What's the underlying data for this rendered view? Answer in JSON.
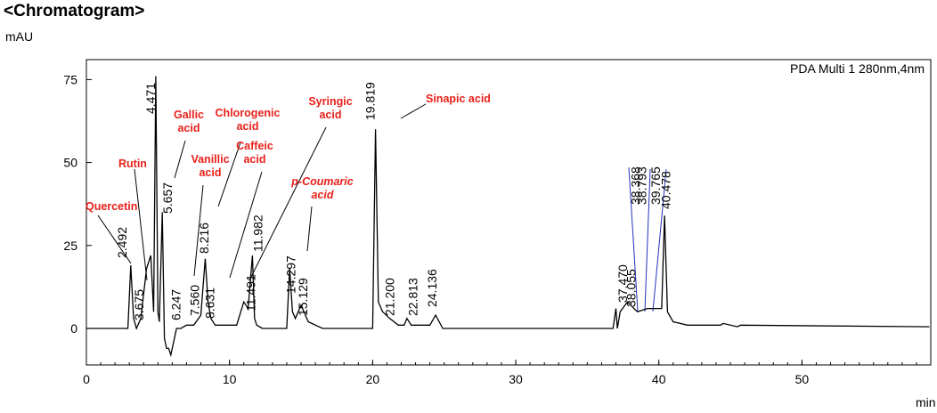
{
  "chart_data": {
    "type": "line",
    "title": "<Chromatogram>",
    "y_label": "mAU",
    "x_label": "min",
    "legend": "PDA Multi 1 280nm,4nm",
    "xlim": [
      0,
      59
    ],
    "ylim": [
      -11,
      81
    ],
    "xticks": [
      0,
      10,
      20,
      30,
      40,
      50
    ],
    "yticks": [
      0,
      25,
      50,
      75
    ],
    "x": [
      0,
      2.9,
      3.1,
      3.3,
      3.5,
      3.8,
      4.2,
      4.5,
      4.7,
      4.85,
      5.0,
      5.1,
      5.3,
      5.45,
      5.6,
      5.75,
      5.9,
      6.1,
      6.3,
      6.6,
      7.0,
      7.5,
      8.0,
      8.3,
      8.5,
      8.7,
      9.0,
      10.5,
      11.0,
      11.3,
      11.6,
      11.75,
      11.9,
      12.3,
      14.0,
      14.2,
      14.4,
      14.6,
      15.0,
      15.5,
      16.5,
      20.0,
      20.2,
      20.4,
      20.7,
      21.2,
      21.8,
      22.2,
      22.4,
      22.7,
      24.0,
      24.4,
      24.9,
      36.8,
      37.0,
      37.1,
      37.3,
      37.8,
      38.5,
      39.2,
      40.2,
      40.4,
      40.6,
      41,
      42,
      44.3,
      44.5,
      45.5,
      45.7,
      58.9
    ],
    "series": [
      {
        "color": "#000000",
        "values": [
          0,
          0,
          19,
          3,
          0,
          3,
          18,
          22,
          5,
          76,
          5,
          2,
          35,
          -3,
          -6,
          -6,
          -8,
          -4,
          0,
          0,
          1,
          1,
          4,
          21,
          8,
          3,
          1,
          1,
          8,
          6,
          22,
          3,
          1,
          0,
          0,
          18,
          5,
          3,
          7,
          2,
          0,
          0,
          60,
          8,
          5,
          3,
          1,
          1,
          3,
          1,
          1,
          4,
          0,
          0,
          6,
          0,
          5,
          8,
          5,
          6,
          6,
          34,
          5,
          2,
          1,
          1,
          1.5,
          0.5,
          1,
          0.5
        ]
      }
    ],
    "peak_times": [
      2.492,
      3.675,
      4.471,
      5.657,
      6.247,
      7.56,
      8.216,
      8.631,
      11.491,
      11.982,
      14.297,
      15.129,
      19.819,
      21.2,
      22.813,
      24.136,
      37.47,
      38.055,
      38.368,
      38.793,
      39.765,
      40.478
    ],
    "peak_time_labels": [
      "2.492",
      "3.675",
      "4.471",
      "5.657",
      "6.247",
      "7.560",
      "8.216",
      "8.631",
      "11.491",
      "11.982",
      "14.297",
      "15.129",
      "19.819",
      "21.200",
      "22.813",
      "24.136",
      "37.470",
      "38.055",
      "38.368",
      "38.793",
      "39.765",
      "40.478"
    ],
    "compounds": [
      "Quercetin",
      "Rutin",
      "Gallic acid",
      "Chlorogenic acid",
      "Vanillic acid",
      "Caffeic acid",
      "Syringic acid",
      "p-Coumaric acid",
      "Sinapic acid"
    ]
  }
}
